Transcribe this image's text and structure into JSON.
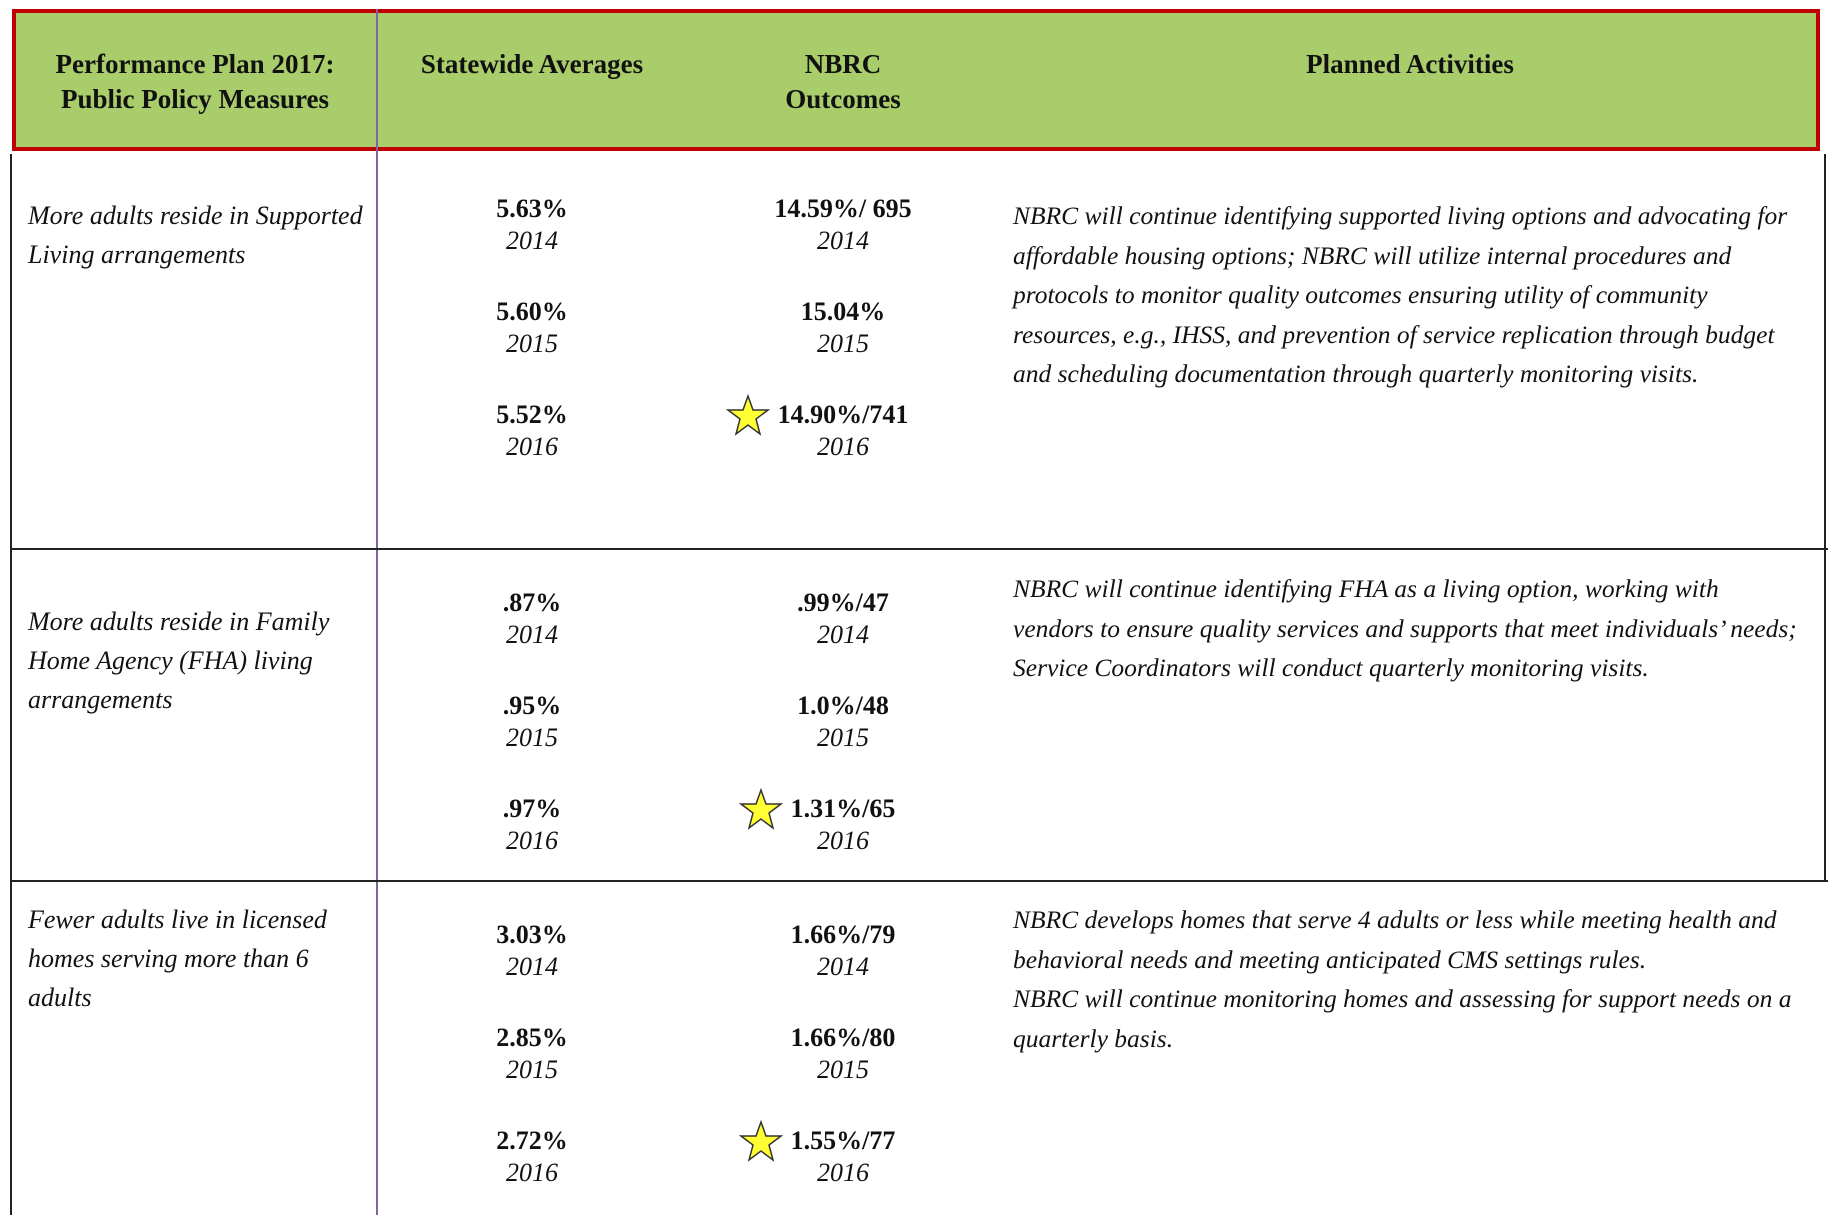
{
  "header": {
    "columns": [
      "Performance Plan 2017:  Public Policy Measures",
      "Statewide Averages",
      "NBRC Outcomes",
      "Planned Activities"
    ]
  },
  "rows": [
    {
      "measure": "More adults reside in Supported Living arrangements",
      "statewide": [
        {
          "value": "5.63%",
          "year": "2014"
        },
        {
          "value": "5.60%",
          "year": "2015"
        },
        {
          "value": "5.52%",
          "year": "2016"
        }
      ],
      "nbrc": [
        {
          "value": "14.59%/ 695",
          "year": "2014"
        },
        {
          "value": "15.04%",
          "year": "2015"
        },
        {
          "value": "14.90%/741",
          "year": "2016"
        }
      ],
      "activities": [
        "NBRC will continue identifying supported living options and advocating for affordable housing options; NBRC will utilize internal procedures and protocols to monitor quality outcomes ensuring utility of community resources, e.g., IHSS, and prevention of service replication through budget and scheduling documentation through quarterly monitoring visits."
      ]
    },
    {
      "measure": "More adults reside in Family Home Agency (FHA) living arrangements",
      "statewide": [
        {
          "value": ".87%",
          "year": "2014"
        },
        {
          "value": ".95%",
          "year": "2015"
        },
        {
          "value": ".97%",
          "year": "2016"
        }
      ],
      "nbrc": [
        {
          "value": ".99%/47",
          "year": "2014"
        },
        {
          "value": "1.0%/48",
          "year": "2015"
        },
        {
          "value": "1.31%/65",
          "year": "2016"
        }
      ],
      "activities": [
        "NBRC will continue identifying FHA as a living option, working with vendors to ensure quality services and supports that meet individuals’ needs; Service Coordinators will conduct quarterly monitoring visits."
      ]
    },
    {
      "measure": "Fewer adults live in licensed homes serving more than 6 adults",
      "statewide": [
        {
          "value": "3.03%",
          "year": "2014"
        },
        {
          "value": "2.85%",
          "year": "2015"
        },
        {
          "value": "2.72%",
          "year": "2016"
        }
      ],
      "nbrc": [
        {
          "value": "1.66%/79",
          "year": "2014"
        },
        {
          "value": "1.66%/80",
          "year": "2015"
        },
        {
          "value": "1.55%/77",
          "year": "2016"
        }
      ],
      "activities": [
        "NBRC develops homes that serve 4 adults or less while meeting health and behavioral needs and meeting anticipated CMS settings rules.",
        "NBRC will continue monitoring homes and assessing for support needs on a quarterly basis."
      ]
    }
  ]
}
